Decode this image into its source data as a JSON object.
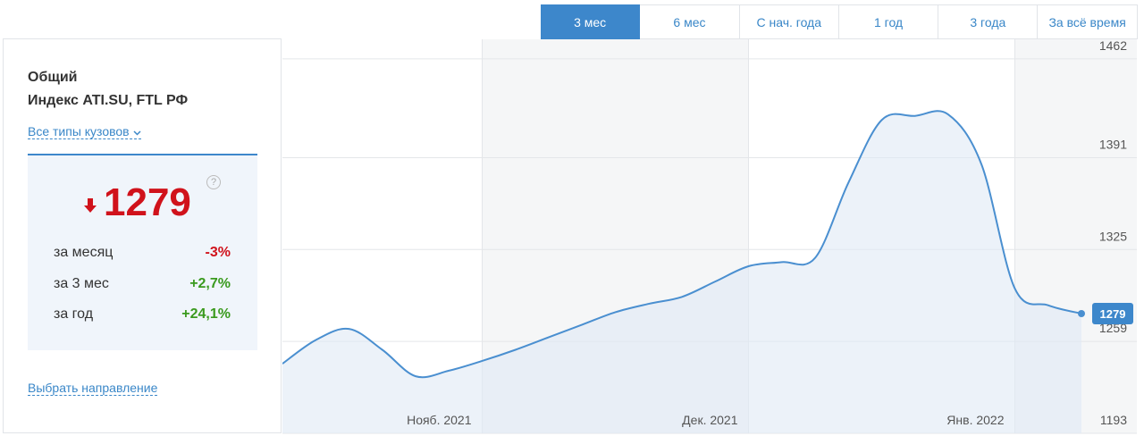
{
  "tabs": [
    "3 мес",
    "6 мес",
    "С нач. года",
    "1 год",
    "3 года",
    "За всё время"
  ],
  "panel": {
    "title": "Общий",
    "subtitle": "Индекс ATI.SU, FTL РФ",
    "filter": "Все типы кузовов",
    "help": "?",
    "stats": [
      {
        "label": "за месяц",
        "value": "-3%"
      },
      {
        "label": "за 3 мес",
        "value": "+2,7%"
      },
      {
        "label": "за год",
        "value": "+24,1%"
      }
    ],
    "link": "Выбрать направление"
  },
  "chart_data": {
    "type": "area",
    "categories": [
      null,
      null,
      null,
      null,
      null,
      null,
      "Нояб. 2021",
      null,
      null,
      null,
      null,
      null,
      null,
      null,
      "Дек. 2021",
      null,
      null,
      null,
      null,
      null,
      null,
      null,
      "Янв. 2022",
      null,
      null
    ],
    "values": [
      1243,
      1260,
      1268,
      1253,
      1234,
      1238,
      1245,
      1253,
      1262,
      1271,
      1280,
      1286,
      1291,
      1302,
      1313,
      1316,
      1319,
      1373,
      1418,
      1421,
      1422,
      1386,
      1297,
      1285,
      1279
    ],
    "color": "#4a8fd0",
    "ylim": [
      1193,
      1476
    ],
    "yticks": [
      1193,
      1259,
      1325,
      1391,
      1462
    ],
    "grid": true
  }
}
